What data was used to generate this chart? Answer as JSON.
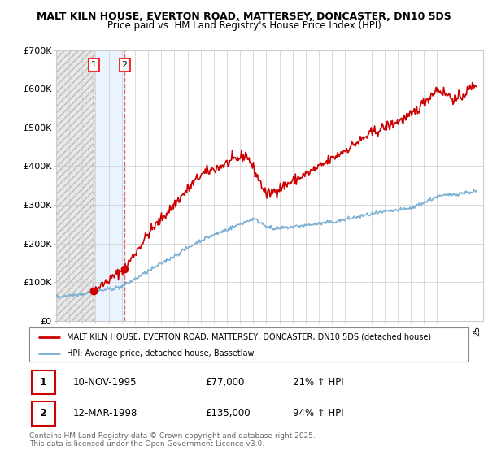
{
  "title1": "MALT KILN HOUSE, EVERTON ROAD, MATTERSEY, DONCASTER, DN10 5DS",
  "title2": "Price paid vs. HM Land Registry's House Price Index (HPI)",
  "ylim": [
    0,
    700000
  ],
  "yticks": [
    0,
    100000,
    200000,
    300000,
    400000,
    500000,
    600000,
    700000
  ],
  "ytick_labels": [
    "£0",
    "£100K",
    "£200K",
    "£300K",
    "£400K",
    "£500K",
    "£600K",
    "£700K"
  ],
  "x_start_year": 1993,
  "x_end_year": 2025,
  "purchase1_year": 1995.87,
  "purchase1_price": 77000,
  "purchase2_year": 1998.21,
  "purchase2_price": 135000,
  "legend_line1": "MALT KILN HOUSE, EVERTON ROAD, MATTERSEY, DONCASTER, DN10 5DS (detached house)",
  "legend_line2": "HPI: Average price, detached house, Bassetlaw",
  "table_row1": [
    "1",
    "10-NOV-1995",
    "£77,000",
    "21% ↑ HPI"
  ],
  "table_row2": [
    "2",
    "12-MAR-1998",
    "£135,000",
    "94% ↑ HPI"
  ],
  "footer": "Contains HM Land Registry data © Crown copyright and database right 2025.\nThis data is licensed under the Open Government Licence v3.0.",
  "red_color": "#cc0000",
  "blue_color": "#7bafd4",
  "grid_color": "#cccccc"
}
